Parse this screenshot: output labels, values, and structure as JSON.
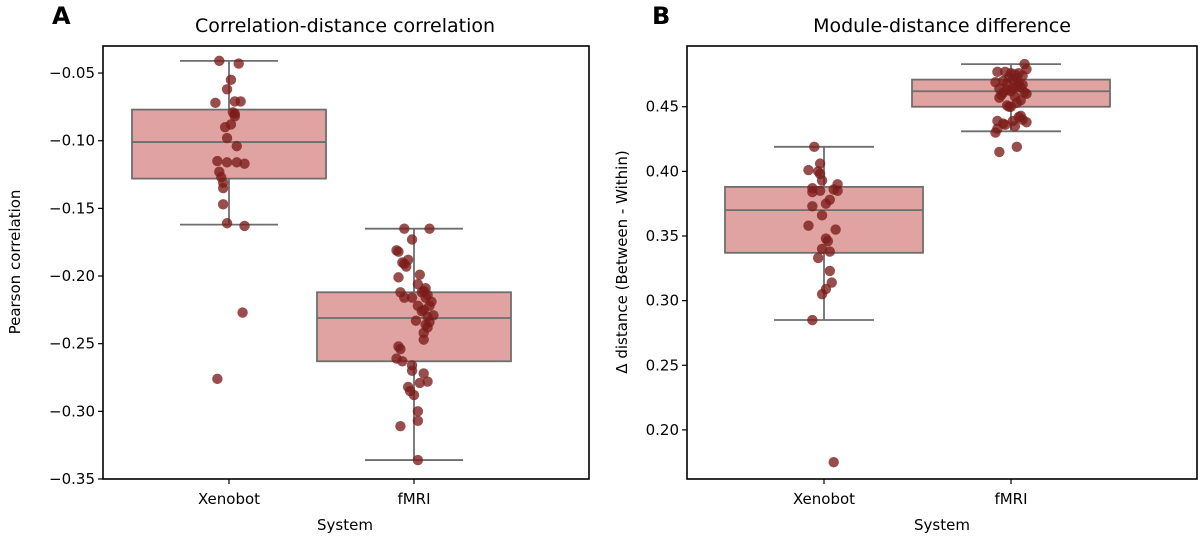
{
  "chart_data": [
    {
      "type": "box",
      "panel_label": "A",
      "title": "Correlation-distance correlation",
      "xlabel": "System",
      "ylabel": "Pearson correlation",
      "categories": [
        "Xenobot",
        "fMRI"
      ],
      "ylim": [
        -0.35,
        -0.03
      ],
      "yticks": [
        -0.05,
        -0.1,
        -0.15,
        -0.2,
        -0.25,
        -0.3,
        -0.35
      ],
      "ytick_labels": [
        "−0.05",
        "−0.10",
        "−0.15",
        "−0.20",
        "−0.25",
        "−0.30",
        "−0.35"
      ],
      "grid": false,
      "box_color": "#e0a3a1",
      "point_color": "#7a1c1a",
      "boxes": [
        {
          "category": "Xenobot",
          "whisker_high": -0.041,
          "q3": -0.077,
          "median": -0.101,
          "q1": -0.128,
          "whisker_low": -0.162
        },
        {
          "category": "fMRI",
          "whisker_high": -0.165,
          "q3": -0.212,
          "median": -0.231,
          "q1": -0.263,
          "whisker_low": -0.336
        }
      ],
      "points": [
        {
          "category": "Xenobot",
          "values": [
            -0.041,
            -0.043,
            -0.055,
            -0.062,
            -0.072,
            -0.071,
            -0.071,
            -0.079,
            -0.08,
            -0.082,
            -0.09,
            -0.088,
            -0.098,
            -0.104,
            -0.115,
            -0.116,
            -0.116,
            -0.117,
            -0.123,
            -0.127,
            -0.131,
            -0.135,
            -0.147,
            -0.161,
            -0.163,
            -0.227,
            -0.276
          ],
          "jitter": [
            -0.05,
            0.05,
            0.01,
            -0.01,
            -0.07,
            0.03,
            0.06,
            0.02,
            0.03,
            0.03,
            -0.02,
            0.01,
            -0.01,
            0.04,
            -0.06,
            -0.01,
            0.04,
            0.08,
            -0.05,
            -0.04,
            -0.03,
            -0.03,
            -0.03,
            -0.01,
            0.08,
            0.07,
            -0.06
          ]
        },
        {
          "category": "fMRI",
          "values": [
            -0.165,
            -0.165,
            -0.173,
            -0.181,
            -0.182,
            -0.188,
            -0.19,
            -0.191,
            -0.193,
            -0.199,
            -0.201,
            -0.206,
            -0.209,
            -0.211,
            -0.212,
            -0.212,
            -0.214,
            -0.216,
            -0.216,
            -0.216,
            -0.219,
            -0.222,
            -0.222,
            -0.225,
            -0.226,
            -0.229,
            -0.23,
            -0.233,
            -0.234,
            -0.236,
            -0.238,
            -0.242,
            -0.247,
            -0.252,
            -0.254,
            -0.261,
            -0.263,
            -0.266,
            -0.27,
            -0.272,
            -0.278,
            -0.279,
            -0.282,
            -0.285,
            -0.288,
            -0.3,
            -0.307,
            -0.311,
            -0.336
          ],
          "jitter": [
            -0.05,
            0.08,
            -0.01,
            -0.09,
            -0.08,
            -0.03,
            -0.06,
            -0.05,
            -0.04,
            0.03,
            -0.08,
            0.02,
            0.06,
            0.05,
            -0.07,
            0.04,
            0.07,
            -0.05,
            -0.01,
            0.06,
            0.09,
            0.02,
            0.08,
            0.05,
            0.04,
            0.1,
            0.07,
            0.01,
            0.08,
            0.06,
            0.07,
            0.05,
            0.05,
            -0.08,
            -0.07,
            -0.09,
            -0.06,
            -0.01,
            -0.01,
            0.05,
            0.07,
            0.03,
            -0.03,
            -0.02,
            0.0,
            0.02,
            0.02,
            -0.07,
            0.02
          ]
        }
      ]
    },
    {
      "type": "box",
      "panel_label": "B",
      "title": "Module-distance difference",
      "xlabel": "System",
      "ylabel": "Δ distance (Between - Within)",
      "categories": [
        "Xenobot",
        "fMRI"
      ],
      "ylim": [
        0.162,
        0.497
      ],
      "yticks": [
        0.2,
        0.25,
        0.3,
        0.35,
        0.4,
        0.45
      ],
      "ytick_labels": [
        "0.20",
        "0.25",
        "0.30",
        "0.35",
        "0.40",
        "0.45"
      ],
      "grid": false,
      "box_color": "#e0a3a1",
      "point_color": "#7a1c1a",
      "boxes": [
        {
          "category": "Xenobot",
          "whisker_high": 0.419,
          "q3": 0.388,
          "median": 0.37,
          "q1": 0.337,
          "whisker_low": 0.285
        },
        {
          "category": "fMRI",
          "whisker_high": 0.483,
          "q3": 0.471,
          "median": 0.462,
          "q1": 0.45,
          "whisker_low": 0.431
        }
      ],
      "points": [
        {
          "category": "Xenobot",
          "values": [
            0.419,
            0.406,
            0.401,
            0.4,
            0.398,
            0.393,
            0.39,
            0.387,
            0.386,
            0.385,
            0.385,
            0.384,
            0.378,
            0.375,
            0.373,
            0.366,
            0.358,
            0.355,
            0.348,
            0.346,
            0.34,
            0.338,
            0.333,
            0.323,
            0.314,
            0.309,
            0.305,
            0.285,
            0.175
          ],
          "jitter": [
            -0.05,
            -0.02,
            -0.08,
            -0.03,
            -0.02,
            -0.01,
            0.07,
            -0.06,
            0.05,
            -0.02,
            0.07,
            -0.06,
            0.03,
            0.01,
            -0.06,
            -0.01,
            -0.08,
            0.06,
            0.01,
            0.02,
            -0.01,
            0.03,
            -0.03,
            0.03,
            0.04,
            0.01,
            -0.01,
            -0.06,
            0.05
          ]
        },
        {
          "category": "fMRI",
          "values": [
            0.483,
            0.479,
            0.477,
            0.477,
            0.476,
            0.476,
            0.475,
            0.474,
            0.473,
            0.472,
            0.471,
            0.47,
            0.469,
            0.468,
            0.468,
            0.467,
            0.466,
            0.465,
            0.464,
            0.464,
            0.463,
            0.462,
            0.461,
            0.461,
            0.46,
            0.459,
            0.458,
            0.457,
            0.455,
            0.453,
            0.451,
            0.45,
            0.45,
            0.443,
            0.442,
            0.44,
            0.439,
            0.439,
            0.438,
            0.437,
            0.436,
            0.435,
            0.433,
            0.43,
            0.419,
            0.415
          ],
          "jitter": [
            0.07,
            0.08,
            -0.07,
            -0.03,
            0.0,
            0.04,
            0.02,
            0.06,
            -0.01,
            0.03,
            0.01,
            -0.04,
            -0.08,
            0.04,
            -0.02,
            0.06,
            0.03,
            0.05,
            -0.06,
            0.01,
            -0.02,
            0.0,
            -0.04,
            0.07,
            0.08,
            -0.05,
            0.02,
            -0.06,
            0.05,
            0.03,
            -0.02,
            -0.01,
            0.0,
            0.05,
            0.04,
            0.06,
            -0.07,
            0.01,
            0.08,
            -0.04,
            -0.03,
            0.02,
            -0.07,
            -0.08,
            0.03,
            -0.06
          ]
        }
      ]
    }
  ]
}
